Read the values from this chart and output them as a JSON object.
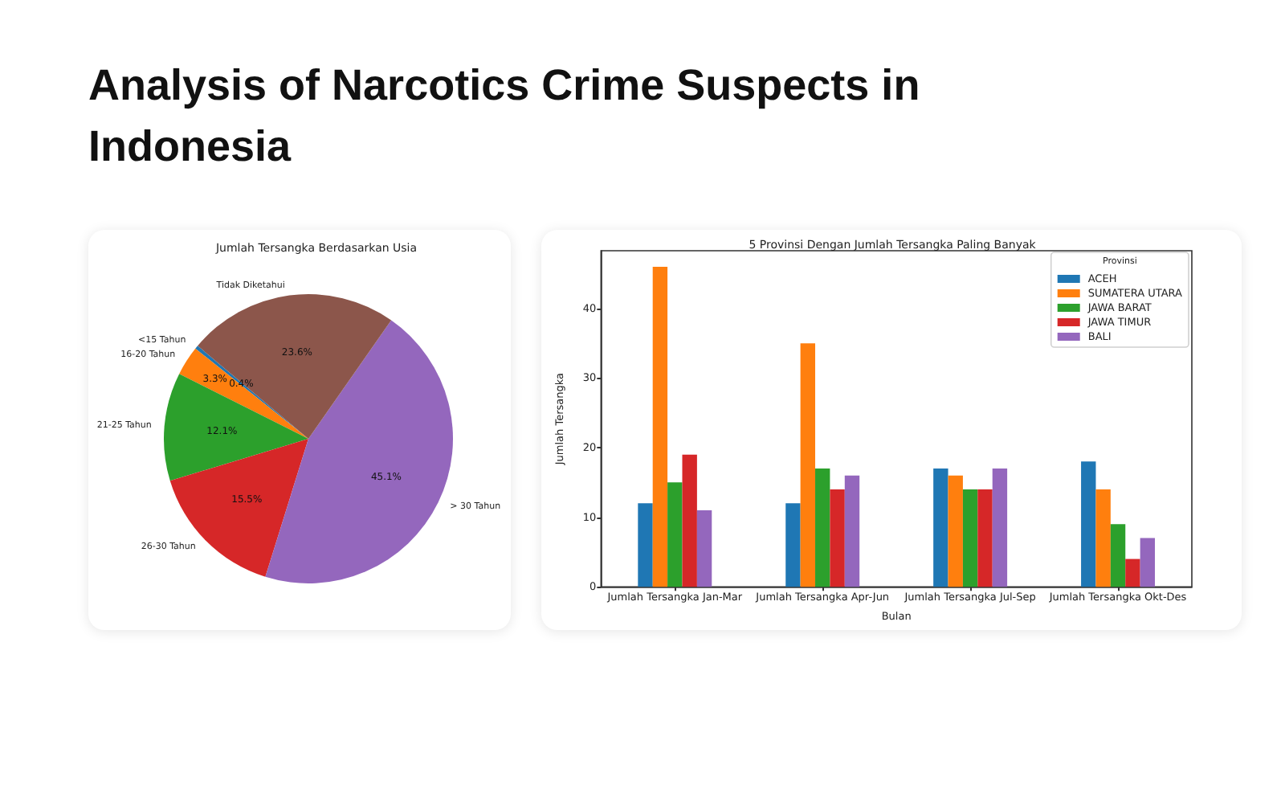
{
  "chart_data": [
    {
      "type": "other",
      "title": "Analysis of Narcotics Crime Suspects in Indonesia"
    },
    {
      "type": "pie",
      "title": "Jumlah Tersangka Berdasarkan Usia",
      "categories": [
        "<15 Tahun",
        "16-20 Tahun",
        "21-25 Tahun",
        "26-30 Tahun",
        "> 30 Tahun",
        "Tidak Diketahui"
      ],
      "values": [
        0.4,
        3.3,
        12.1,
        15.5,
        45.1,
        23.6
      ],
      "value_labels": [
        "0.4%",
        "3.3%",
        "12.1%",
        "15.5%",
        "45.1%",
        "23.6%"
      ],
      "colors": [
        "#1f77b4",
        "#ff7f0e",
        "#2ca02c",
        "#d62728",
        "#9467bd",
        "#8c564b"
      ]
    },
    {
      "type": "bar",
      "title": "5 Provinsi Dengan Jumlah Tersangka Paling Banyak",
      "xlabel": "Bulan",
      "ylabel": "Jumlah Tersangka",
      "legend_title": "Provinsi",
      "categories": [
        "Jumlah Tersangka Jan-Mar",
        "Jumlah Tersangka Apr-Jun",
        "Jumlah Tersangka Jul-Sep",
        "Jumlah Tersangka Okt-Des"
      ],
      "series": [
        {
          "name": "ACEH",
          "color": "#1f77b4",
          "values": [
            12,
            12,
            17,
            18
          ]
        },
        {
          "name": "SUMATERA UTARA",
          "color": "#ff7f0e",
          "values": [
            46,
            35,
            16,
            14
          ]
        },
        {
          "name": "JAWA BARAT",
          "color": "#2ca02c",
          "values": [
            15,
            17,
            14,
            9
          ]
        },
        {
          "name": "JAWA TIMUR",
          "color": "#d62728",
          "values": [
            19,
            14,
            14,
            4
          ]
        },
        {
          "name": "BALI",
          "color": "#9467bd",
          "values": [
            11,
            16,
            17,
            7
          ]
        }
      ],
      "ylim": [
        0,
        48.3
      ],
      "yticks": [
        0,
        10,
        20,
        30,
        40
      ],
      "grid": false,
      "legend": "top right"
    }
  ]
}
